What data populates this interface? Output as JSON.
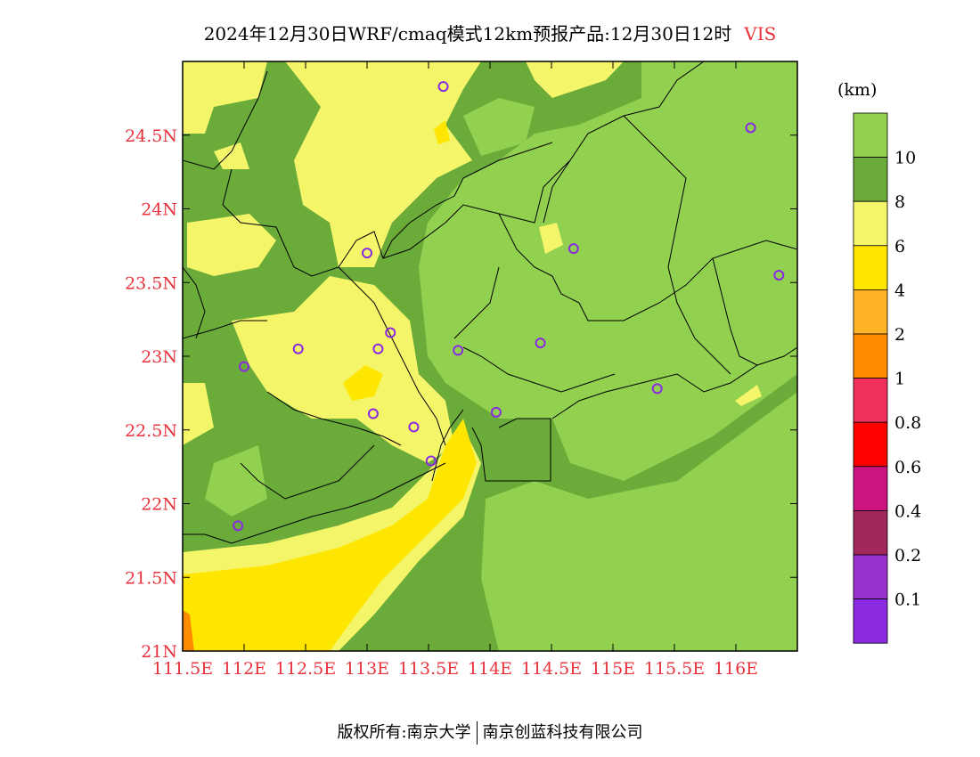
{
  "title": {
    "main": "2024年12月30日WRF/cmaq模式12km预报产品:12月30日12时",
    "variable": "VIS"
  },
  "map": {
    "lon_min": 111.5,
    "lon_max": 116.5,
    "lat_min": 21.0,
    "lat_max": 25.0,
    "lat_labels": [
      {
        "lat": 24.5,
        "text": "24.5N"
      },
      {
        "lat": 24,
        "text": "24N"
      },
      {
        "lat": 23.5,
        "text": "23.5N"
      },
      {
        "lat": 23,
        "text": "23N"
      },
      {
        "lat": 22.5,
        "text": "22.5N"
      },
      {
        "lat": 22,
        "text": "22N"
      },
      {
        "lat": 21.5,
        "text": "21.5N"
      },
      {
        "lat": 21,
        "text": "21N"
      }
    ],
    "lon_labels": [
      {
        "lon": 111.5,
        "text": "111.5E"
      },
      {
        "lon": 112,
        "text": "112E"
      },
      {
        "lon": 112.5,
        "text": "112.5E"
      },
      {
        "lon": 113,
        "text": "113E"
      },
      {
        "lon": 113.5,
        "text": "113.5E"
      },
      {
        "lon": 114,
        "text": "114E"
      },
      {
        "lon": 114.5,
        "text": "114.5E"
      },
      {
        "lon": 115,
        "text": "115E"
      },
      {
        "lon": 115.5,
        "text": "115.5E"
      },
      {
        "lon": 116,
        "text": "116E"
      }
    ],
    "stations": [
      {
        "lon": 113.62,
        "lat": 24.83
      },
      {
        "lon": 116.12,
        "lat": 24.55
      },
      {
        "lon": 113.0,
        "lat": 23.7
      },
      {
        "lon": 114.68,
        "lat": 23.73
      },
      {
        "lon": 116.35,
        "lat": 23.55
      },
      {
        "lon": 113.19,
        "lat": 23.16
      },
      {
        "lon": 112.44,
        "lat": 23.05
      },
      {
        "lon": 113.09,
        "lat": 23.05
      },
      {
        "lon": 113.74,
        "lat": 23.04
      },
      {
        "lon": 114.41,
        "lat": 23.09
      },
      {
        "lon": 112.0,
        "lat": 22.93
      },
      {
        "lon": 115.36,
        "lat": 22.78
      },
      {
        "lon": 113.05,
        "lat": 22.61
      },
      {
        "lon": 114.05,
        "lat": 22.62
      },
      {
        "lon": 113.38,
        "lat": 22.52
      },
      {
        "lon": 113.52,
        "lat": 22.29
      },
      {
        "lon": 111.95,
        "lat": 21.85
      }
    ]
  },
  "legend": {
    "unit": "(km)",
    "levels": [
      {
        "color": "#92d050",
        "label": "10"
      },
      {
        "color": "#6aab3a",
        "label": "8"
      },
      {
        "color": "#f5f56a",
        "label": "6"
      },
      {
        "color": "#ffe600",
        "label": "4"
      },
      {
        "color": "#ffb428",
        "label": "2"
      },
      {
        "color": "#ff8c00",
        "label": "1"
      },
      {
        "color": "#f0305a",
        "label": "0.8"
      },
      {
        "color": "#ff0000",
        "label": "0.6"
      },
      {
        "color": "#cc1480",
        "label": "0.4"
      },
      {
        "color": "#a0285a",
        "label": "0.2"
      },
      {
        "color": "#9932cc",
        "label": "0.1"
      },
      {
        "color": "#8a2be2",
        "label": ""
      }
    ]
  },
  "footer": {
    "left": "版权所有:南京大学",
    "right": "南京创蓝科技有限公司"
  }
}
